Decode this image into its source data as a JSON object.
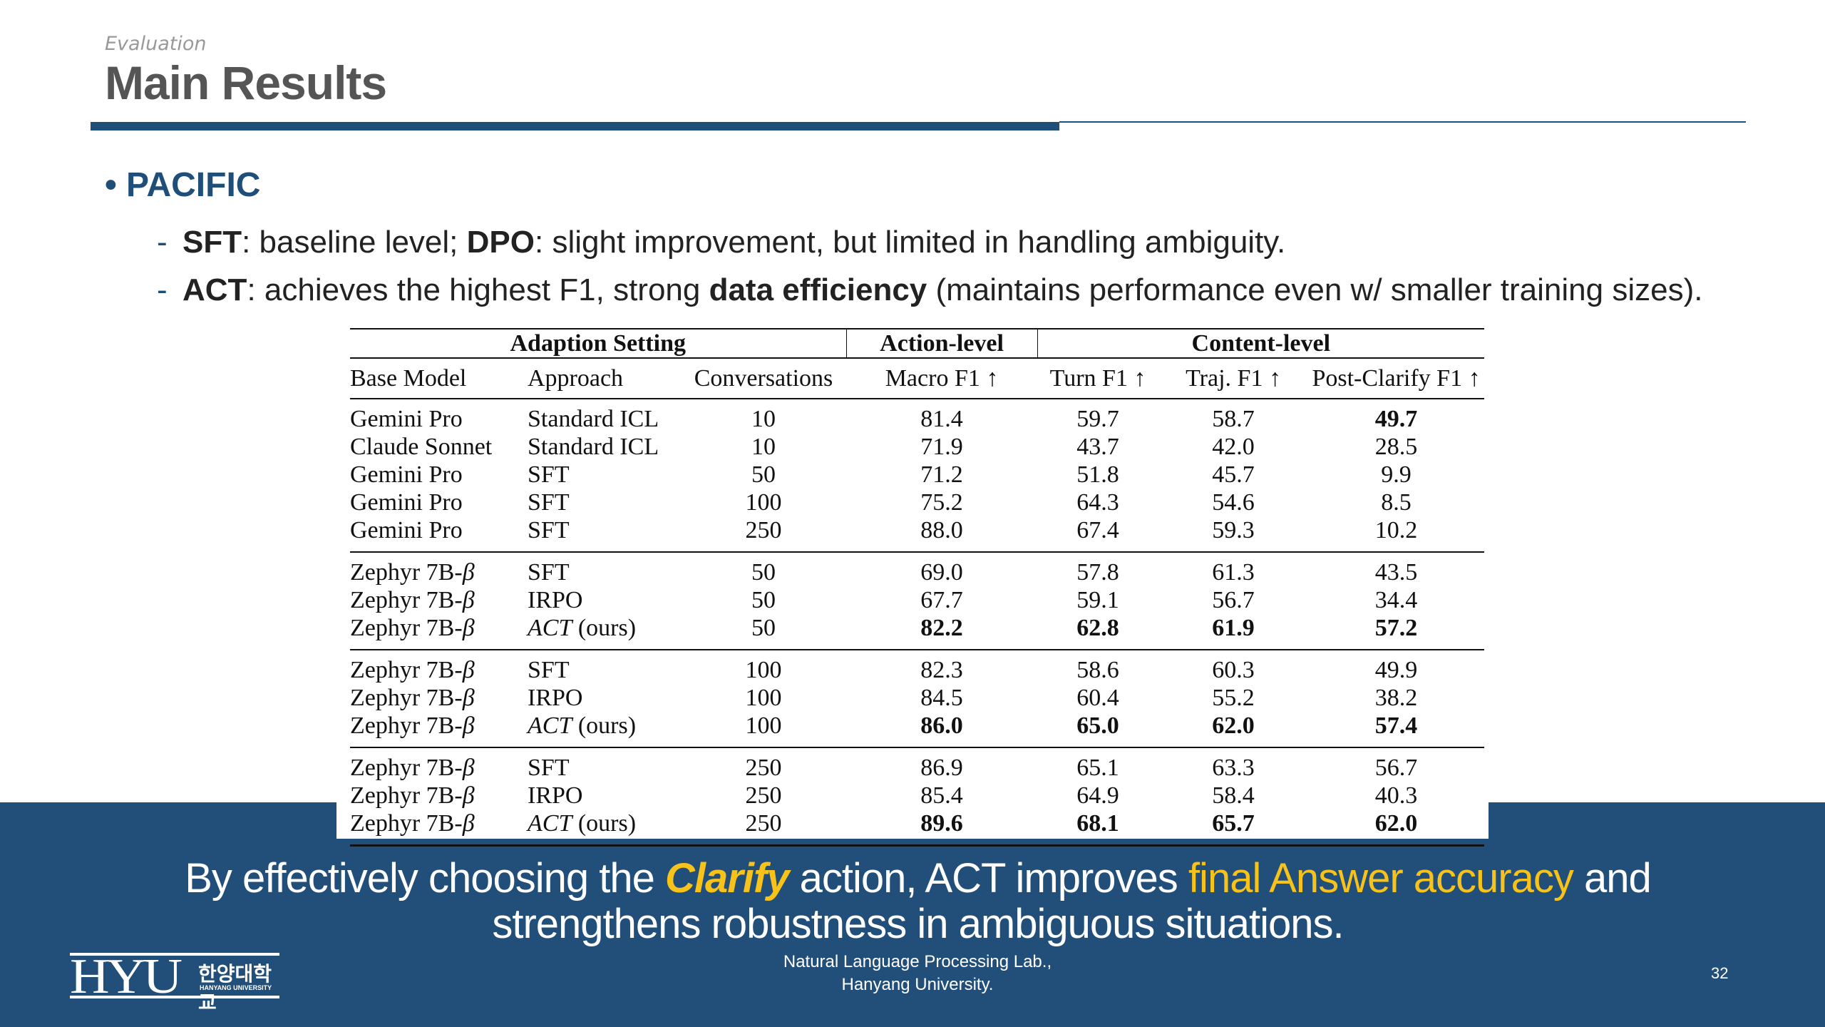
{
  "header": {
    "section": "Evaluation",
    "title": "Main Results"
  },
  "bullet": {
    "title": "PACIFIC",
    "sub1": {
      "k1": "SFT",
      "t1": ": baseline level; ",
      "k2": "DPO",
      "t2": ": slight improvement, but limited in handling ambiguity."
    },
    "sub2": {
      "k1": "ACT",
      "t1": ": achieves the highest F1, strong ",
      "k2": "data efficiency",
      "t2": " (maintains performance even w/ smaller training sizes)."
    }
  },
  "table": {
    "groups": {
      "adaption": "Adaption Setting",
      "action": "Action-level",
      "content": "Content-level"
    },
    "columns": [
      "Base Model",
      "Approach",
      "Conversations",
      "Macro F1 ↑",
      "Turn F1 ↑",
      "Traj. F1 ↑",
      "Post-Clarify F1 ↑"
    ],
    "row_groups": [
      [
        {
          "cells": [
            "Gemini Pro",
            "Standard ICL",
            "10",
            "81.4",
            "59.7",
            "58.7",
            "49.7"
          ],
          "bold": [
            6
          ]
        },
        {
          "cells": [
            "Claude Sonnet",
            "Standard ICL",
            "10",
            "71.9",
            "43.7",
            "42.0",
            "28.5"
          ],
          "bold": []
        },
        {
          "cells": [
            "Gemini Pro",
            "SFT",
            "50",
            "71.2",
            "51.8",
            "45.7",
            "9.9"
          ],
          "bold": []
        },
        {
          "cells": [
            "Gemini Pro",
            "SFT",
            "100",
            "75.2",
            "64.3",
            "54.6",
            "8.5"
          ],
          "bold": []
        },
        {
          "cells": [
            "Gemini Pro",
            "SFT",
            "250",
            "88.0",
            "67.4",
            "59.3",
            "10.2"
          ],
          "bold": []
        }
      ],
      [
        {
          "cells": [
            "Zephyr 7B-β",
            "SFT",
            "50",
            "69.0",
            "57.8",
            "61.3",
            "43.5"
          ],
          "bold": []
        },
        {
          "cells": [
            "Zephyr 7B-β",
            "IRPO",
            "50",
            "67.7",
            "59.1",
            "56.7",
            "34.4"
          ],
          "bold": []
        },
        {
          "cells": [
            "Zephyr 7B-β",
            "ACT (ours)",
            "50",
            "82.2",
            "62.8",
            "61.9",
            "57.2"
          ],
          "bold": [
            3,
            4,
            5,
            6
          ]
        }
      ],
      [
        {
          "cells": [
            "Zephyr 7B-β",
            "SFT",
            "100",
            "82.3",
            "58.6",
            "60.3",
            "49.9"
          ],
          "bold": []
        },
        {
          "cells": [
            "Zephyr 7B-β",
            "IRPO",
            "100",
            "84.5",
            "60.4",
            "55.2",
            "38.2"
          ],
          "bold": []
        },
        {
          "cells": [
            "Zephyr 7B-β",
            "ACT (ours)",
            "100",
            "86.0",
            "65.0",
            "62.0",
            "57.4"
          ],
          "bold": [
            3,
            4,
            5,
            6
          ]
        }
      ],
      [
        {
          "cells": [
            "Zephyr 7B-β",
            "SFT",
            "250",
            "86.9",
            "65.1",
            "63.3",
            "56.7"
          ],
          "bold": []
        },
        {
          "cells": [
            "Zephyr 7B-β",
            "IRPO",
            "250",
            "85.4",
            "64.9",
            "58.4",
            "40.3"
          ],
          "bold": []
        },
        {
          "cells": [
            "Zephyr 7B-β",
            "ACT (ours)",
            "250",
            "89.6",
            "68.1",
            "65.7",
            "62.0"
          ],
          "bold": [
            3,
            4,
            5,
            6
          ]
        }
      ]
    ]
  },
  "caption": {
    "p1": "By effectively choosing the ",
    "clarify": "Clarify",
    "p2": " action, ACT improves ",
    "highlight": "final Answer accuracy",
    "p3": " and",
    "line2": "strengthens robustness in ambiguous situations."
  },
  "footer": {
    "logo": "HYU",
    "logo_kr": "한양대학교",
    "logo_en": "HANYANG UNIVERSITY",
    "lab1": "Natural Language Processing Lab.,",
    "lab2": "Hanyang University.",
    "page": "32"
  },
  "colors": {
    "brand_blue": "#1f4e79",
    "highlight_yellow": "#f7c21a"
  }
}
